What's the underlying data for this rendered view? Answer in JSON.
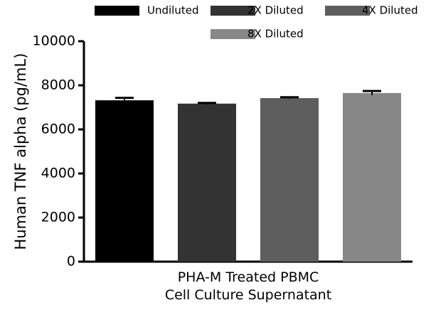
{
  "chart_data": {
    "type": "bar",
    "y_label": "Human TNF alpha (pg/mL)",
    "categories": [
      "PHA-M Treated PBMC\nCell Culture Supernatant"
    ],
    "series": [
      {
        "name": "Undiluted",
        "color": "#000000",
        "values": [
          7320
        ],
        "errors": [
          110
        ]
      },
      {
        "name": "2X Diluted",
        "color": "#333333",
        "values": [
          7170
        ],
        "errors": [
          30
        ]
      },
      {
        "name": "4X Diluted",
        "color": "#5e5e5e",
        "values": [
          7420
        ],
        "errors": [
          40
        ]
      },
      {
        "name": "8X Diluted",
        "color": "#878787",
        "values": [
          7650
        ],
        "errors": [
          90
        ]
      }
    ],
    "ylim": [
      0,
      10000
    ],
    "yticks": [
      0,
      2000,
      4000,
      6000,
      8000,
      10000
    ],
    "grid": false,
    "legend": "top"
  }
}
